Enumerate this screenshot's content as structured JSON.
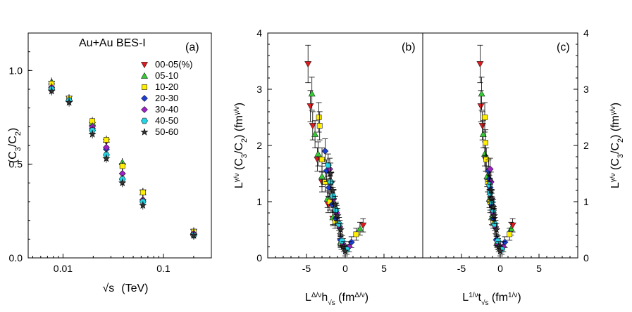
{
  "series_styles": [
    {
      "name": "00-05(%)",
      "color": "#e31a1c",
      "marker": "triangle-down"
    },
    {
      "name": "05-10",
      "color": "#33cc33",
      "marker": "triangle-up"
    },
    {
      "name": "10-20",
      "color": "#ffee00",
      "marker": "square"
    },
    {
      "name": "20-30",
      "color": "#1a3ed6",
      "marker": "diamond"
    },
    {
      "name": "30-40",
      "color": "#a020c8",
      "marker": "diamond"
    },
    {
      "name": "40-50",
      "color": "#22d4e6",
      "marker": "hexagon"
    },
    {
      "name": "50-60",
      "color": "#333333",
      "marker": "star"
    }
  ],
  "chart_data": [
    {
      "type": "scatter",
      "panel_label": "(a)",
      "annotation": "Au+Au BES-I",
      "ylabel_main": "(C",
      "ylabel_sub1": "3",
      "ylabel_mid": "/C",
      "ylabel_sub2": "2",
      "ylabel_end": ")",
      "xlabel_root": "√s",
      "xlabel_unit": "(TeV)",
      "xscale": "log",
      "xlim": [
        0.0045,
        0.3
      ],
      "ylim": [
        0.0,
        1.2
      ],
      "x_ticks": [
        0.01,
        0.1
      ],
      "x_tick_labels": [
        "0.01",
        "0.1"
      ],
      "y_ticks": [
        0.0,
        0.5,
        1.0
      ],
      "y_tick_labels": [
        "0.0",
        "0.5",
        "1.0"
      ],
      "x": [
        0.0077,
        0.0115,
        0.0196,
        0.027,
        0.039,
        0.0624,
        0.2
      ],
      "series": [
        {
          "name": "00-05(%)",
          "values": [
            0.93,
            0.85,
            0.71,
            0.62,
            0.49,
            0.35,
            0.14
          ]
        },
        {
          "name": "05-10",
          "values": [
            0.94,
            0.85,
            0.72,
            0.63,
            0.51,
            0.35,
            0.14
          ]
        },
        {
          "name": "10-20",
          "values": [
            0.93,
            0.85,
            0.73,
            0.63,
            0.49,
            0.35,
            0.14
          ]
        },
        {
          "name": "20-30",
          "values": [
            0.9,
            0.84,
            0.69,
            0.58,
            0.45,
            0.31,
            0.13
          ]
        },
        {
          "name": "30-40",
          "values": [
            0.91,
            0.84,
            0.7,
            0.59,
            0.45,
            0.31,
            0.13
          ]
        },
        {
          "name": "40-50",
          "values": [
            0.9,
            0.84,
            0.68,
            0.55,
            0.42,
            0.3,
            0.12
          ]
        },
        {
          "name": "50-60",
          "values": [
            0.89,
            0.83,
            0.66,
            0.53,
            0.4,
            0.28,
            0.12
          ]
        }
      ]
    },
    {
      "type": "scatter",
      "panel_label": "(b)",
      "ylabel_main": "L",
      "ylabel_sup1": "γ/ν",
      "ylabel_mid": " (C",
      "ylabel_sub1": "3",
      "ylabel_mid2": "/C",
      "ylabel_sub2": "2",
      "ylabel_end": ") (fm",
      "ylabel_sup2": "γ/ν",
      "ylabel_close": ")",
      "xlabel_main": "L",
      "xlabel_sup1": "Δ/ν",
      "xlabel_mid": "h",
      "xlabel_sub": "√s",
      "xlabel_unit": " (fm",
      "xlabel_sup2": "Δ/ν",
      "xlabel_close": ")",
      "xlim": [
        -10,
        10
      ],
      "ylim": [
        0,
        4
      ],
      "x_ticks": [
        -5,
        0,
        5
      ],
      "x_tick_labels": [
        "-5",
        "0",
        "5"
      ],
      "y_ticks": [
        0,
        1,
        2,
        3,
        4
      ],
      "y_tick_labels": [
        "0",
        "1",
        "2",
        "3",
        "4"
      ],
      "series": [
        {
          "name": "00-05(%)",
          "x": [
            -4.8,
            -4.5,
            -4.2,
            -3.6,
            -3.0,
            -2.2,
            -1.6,
            -0.6,
            2.3
          ],
          "y": [
            3.45,
            2.7,
            2.35,
            1.75,
            1.35,
            0.95,
            0.7,
            0.3,
            0.58
          ]
        },
        {
          "name": "05-10",
          "x": [
            -4.3,
            -3.9,
            -3.5,
            -3.0,
            -2.3,
            -1.6,
            -0.6,
            1.9
          ],
          "y": [
            2.92,
            2.2,
            1.85,
            1.45,
            1.05,
            0.72,
            0.28,
            0.52
          ]
        },
        {
          "name": "10-20",
          "x": [
            -3.4,
            -3.3,
            -3.0,
            -2.6,
            -2.0,
            -1.3,
            -0.5,
            1.4
          ],
          "y": [
            2.5,
            2.35,
            1.75,
            1.35,
            1.0,
            0.65,
            0.25,
            0.42
          ]
        },
        {
          "name": "20-30",
          "x": [
            -2.6,
            -2.4,
            -2.1,
            -1.7,
            -1.2,
            -0.6,
            0.8
          ],
          "y": [
            1.9,
            1.55,
            1.25,
            0.95,
            0.7,
            0.32,
            0.28
          ]
        },
        {
          "name": "30-40",
          "x": [
            -2.0,
            -1.8,
            -1.5,
            -1.1,
            -0.7,
            -0.3,
            0.5
          ],
          "y": [
            1.58,
            1.35,
            1.05,
            0.8,
            0.55,
            0.25,
            0.2
          ]
        },
        {
          "name": "40-50",
          "x": [
            -2.2,
            -1.9,
            -1.6,
            -1.2,
            -0.8,
            -0.4,
            0.2
          ],
          "y": [
            1.65,
            1.35,
            1.1,
            0.85,
            0.6,
            0.3,
            0.15
          ]
        },
        {
          "name": "50-60",
          "x": [
            -1.9,
            -1.6,
            -1.3,
            -1.0,
            -0.6,
            -0.2,
            0.0
          ],
          "y": [
            1.5,
            1.2,
            0.95,
            0.75,
            0.5,
            0.2,
            0.12
          ]
        }
      ]
    },
    {
      "type": "scatter",
      "panel_label": "(c)",
      "ylabel_main": "L",
      "ylabel_sup1": "γ/ν",
      "ylabel_mid": " (C",
      "ylabel_sub1": "3",
      "ylabel_mid2": "/C",
      "ylabel_sub2": "2",
      "ylabel_end": ") (fm",
      "ylabel_sup2": "γ/ν",
      "ylabel_close": ")",
      "xlabel_main": "L",
      "xlabel_sup1": "1/ν",
      "xlabel_mid": "t",
      "xlabel_sub": "√s",
      "xlabel_unit": " (fm",
      "xlabel_sup2": "1/ν",
      "xlabel_close": ")",
      "xlim": [
        -10,
        10
      ],
      "ylim": [
        0,
        4
      ],
      "x_ticks": [
        -5,
        0,
        5
      ],
      "x_tick_labels": [
        "-5",
        "0",
        "5"
      ],
      "y_ticks": [
        0,
        1,
        2,
        3,
        4
      ],
      "y_tick_labels": [
        "0",
        "1",
        "2",
        "3",
        "4"
      ],
      "series": [
        {
          "name": "00-05(%)",
          "x": [
            -2.6,
            -2.5,
            -2.3,
            -1.9,
            -1.6,
            -1.3,
            -1.0,
            -0.4,
            1.6
          ],
          "y": [
            3.45,
            2.7,
            2.35,
            1.75,
            1.35,
            0.95,
            0.7,
            0.3,
            0.58
          ]
        },
        {
          "name": "05-10",
          "x": [
            -2.4,
            -2.2,
            -2.0,
            -1.7,
            -1.4,
            -1.1,
            -0.4,
            1.4
          ],
          "y": [
            2.92,
            2.2,
            1.85,
            1.45,
            1.05,
            0.72,
            0.28,
            0.52
          ]
        },
        {
          "name": "10-20",
          "x": [
            -2.0,
            -1.9,
            -1.8,
            -1.6,
            -1.3,
            -0.9,
            -0.3,
            1.2
          ],
          "y": [
            2.5,
            2.05,
            1.75,
            1.35,
            1.0,
            0.65,
            0.25,
            0.42
          ]
        },
        {
          "name": "20-30",
          "x": [
            -1.5,
            -1.4,
            -1.3,
            -1.1,
            -0.9,
            -0.5,
            0.6
          ],
          "y": [
            1.55,
            1.4,
            1.25,
            0.95,
            0.7,
            0.32,
            0.28
          ]
        },
        {
          "name": "30-40",
          "x": [
            -1.3,
            -1.2,
            -1.1,
            -0.9,
            -0.6,
            -0.3,
            0.4
          ],
          "y": [
            1.58,
            1.35,
            1.05,
            0.8,
            0.55,
            0.25,
            0.2
          ]
        },
        {
          "name": "40-50",
          "x": [
            -1.4,
            -1.3,
            -1.1,
            -0.9,
            -0.7,
            -0.3,
            0.2
          ],
          "y": [
            1.3,
            1.15,
            1.0,
            0.85,
            0.6,
            0.3,
            0.15
          ]
        },
        {
          "name": "50-60",
          "x": [
            -1.2,
            -1.1,
            -0.9,
            -0.8,
            -0.5,
            -0.2,
            0.0
          ],
          "y": [
            1.2,
            1.05,
            0.9,
            0.75,
            0.5,
            0.2,
            0.12
          ]
        }
      ]
    }
  ]
}
